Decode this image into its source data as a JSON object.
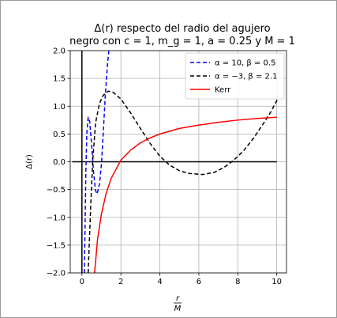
{
  "chart_data": {
    "type": "line",
    "title_line1": "Δ(r) respecto del radio del agujero",
    "title_line2": "negro con c = 1, m_g = 1, a = 0.25 y M = 1",
    "xlabel_num": "r",
    "xlabel_den": "M",
    "ylabel": "Δ(r)",
    "xlim": [
      -0.6,
      10.5
    ],
    "ylim": [
      -2.0,
      2.0
    ],
    "xticks": [
      0,
      2,
      4,
      6,
      8,
      10
    ],
    "yticks": [
      -2.0,
      -1.5,
      -1.0,
      -0.5,
      0.0,
      0.5,
      1.0,
      1.5,
      2.0
    ],
    "grid": true,
    "legend_position": "top-right",
    "reference_lines": {
      "horizontal_y": 0.0,
      "horizontal_x_range": [
        -0.5,
        10.0
      ],
      "vertical_x": 0.0
    },
    "series": [
      {
        "name": "α = 10, β = 0.5",
        "color": "#0000ff",
        "style": "dashed",
        "points": [
          [
            0.12,
            -2.0
          ],
          [
            0.16,
            -1.2
          ],
          [
            0.2,
            -0.2
          ],
          [
            0.25,
            0.5
          ],
          [
            0.32,
            0.8
          ],
          [
            0.4,
            0.72
          ],
          [
            0.5,
            0.3
          ],
          [
            0.6,
            -0.2
          ],
          [
            0.7,
            -0.52
          ],
          [
            0.78,
            -0.58
          ],
          [
            0.9,
            -0.4
          ],
          [
            1.0,
            -0.05
          ],
          [
            1.1,
            0.55
          ],
          [
            1.2,
            1.2
          ],
          [
            1.3,
            1.7
          ],
          [
            1.38,
            2.0
          ]
        ]
      },
      {
        "name": "α = −3, β = 2.1",
        "color": "#000000",
        "style": "dashed",
        "points": [
          [
            0.32,
            -2.0
          ],
          [
            0.45,
            -0.8
          ],
          [
            0.55,
            0.0
          ],
          [
            0.7,
            0.7
          ],
          [
            0.9,
            1.05
          ],
          [
            1.1,
            1.2
          ],
          [
            1.35,
            1.27
          ],
          [
            1.6,
            1.25
          ],
          [
            2.0,
            1.13
          ],
          [
            2.5,
            0.88
          ],
          [
            3.0,
            0.6
          ],
          [
            3.5,
            0.33
          ],
          [
            4.0,
            0.1
          ],
          [
            4.5,
            -0.06
          ],
          [
            5.0,
            -0.16
          ],
          [
            5.5,
            -0.21
          ],
          [
            6.2,
            -0.23
          ],
          [
            6.8,
            -0.19
          ],
          [
            7.3,
            -0.1
          ],
          [
            7.8,
            0.03
          ],
          [
            8.3,
            0.2
          ],
          [
            8.8,
            0.42
          ],
          [
            9.3,
            0.68
          ],
          [
            9.7,
            0.9
          ],
          [
            10.0,
            1.1
          ],
          [
            10.05,
            1.17
          ]
        ]
      },
      {
        "name": "Kerr",
        "color": "#ff0000",
        "style": "solid",
        "points": [
          [
            0.65,
            -2.0
          ],
          [
            0.8,
            -1.4
          ],
          [
            1.0,
            -0.94
          ],
          [
            1.25,
            -0.56
          ],
          [
            1.5,
            -0.3
          ],
          [
            2.0,
            0.03
          ],
          [
            2.5,
            0.21
          ],
          [
            3.0,
            0.34
          ],
          [
            3.5,
            0.43
          ],
          [
            4.0,
            0.5
          ],
          [
            4.5,
            0.55
          ],
          [
            5.0,
            0.6
          ],
          [
            6.0,
            0.66
          ],
          [
            7.0,
            0.71
          ],
          [
            8.0,
            0.75
          ],
          [
            9.0,
            0.78
          ],
          [
            10.0,
            0.8
          ]
        ]
      }
    ]
  }
}
